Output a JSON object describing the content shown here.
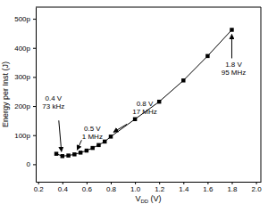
{
  "chart_data": {
    "type": "line",
    "marker": "square",
    "line_style": "solid",
    "color": "#000000",
    "x_label": [
      "V",
      "DD",
      " (V)"
    ],
    "y_label": "Energy per Inst (J)",
    "x": [
      0.35,
      0.4,
      0.45,
      0.5,
      0.55,
      0.6,
      0.65,
      0.7,
      0.75,
      0.8,
      1.0,
      1.2,
      1.4,
      1.6,
      1.8
    ],
    "values": [
      3.6e-11,
      2.8e-11,
      3e-11,
      3.4e-11,
      4e-11,
      4.7e-11,
      5.6e-11,
      6.6e-11,
      7.8e-11,
      9.5e-11,
      1.55e-10,
      2.15e-10,
      2.88e-10,
      3.72e-10,
      4.62e-10
    ],
    "xlim": [
      0.18,
      2.04
    ],
    "xticks": [
      0.2,
      0.4,
      0.6,
      0.8,
      {
        "value": 1,
        "label": "1.0"
      },
      1.2,
      1.4,
      1.6,
      1.8,
      {
        "value": 2,
        "label": "2.0"
      }
    ],
    "ylim": [
      -6e-11,
      5.4e-10
    ],
    "yticks": [
      0,
      {
        "value": 1e-10,
        "label": "100p"
      },
      {
        "value": 2e-10,
        "label": "200p"
      },
      {
        "value": 3e-10,
        "label": "300p"
      },
      {
        "value": 4e-10,
        "label": "400p"
      },
      {
        "value": 5e-10,
        "label": "500p"
      }
    ],
    "grid": false,
    "annotations": [
      {
        "text": [
          "0.4 V",
          "73 kHz"
        ],
        "x": 0.4,
        "y": 2.8e-11
      },
      {
        "text": [
          "0.5 V",
          "1 MHz"
        ],
        "x": 0.5,
        "y": 3.4e-11
      },
      {
        "text": [
          "0.8 V",
          "17 MHz"
        ],
        "x": 0.8,
        "y": 9.5e-11
      },
      {
        "text": [
          "1.8 V",
          "95 MHz"
        ],
        "x": 1.8,
        "y": 4.62e-10
      }
    ]
  }
}
